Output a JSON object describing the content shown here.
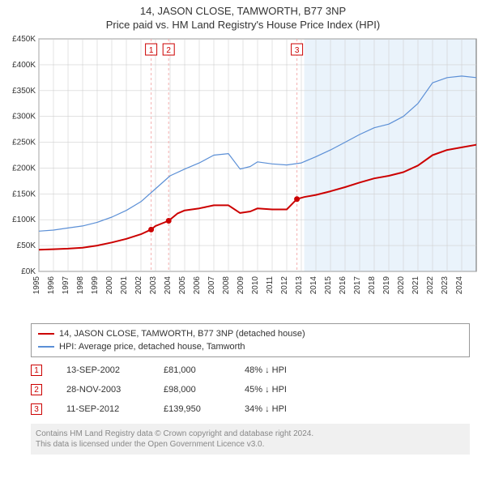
{
  "title": "14, JASON CLOSE, TAMWORTH, B77 3NP",
  "subtitle": "Price paid vs. HM Land Registry's House Price Index (HPI)",
  "chart": {
    "type": "line",
    "plot_bg": "#ffffff",
    "grid_color": "#d0d0d0",
    "axis_color": "#666666",
    "tick_font_size": 10,
    "x": {
      "min": 1995,
      "max": 2025,
      "ticks": [
        1995,
        1996,
        1997,
        1998,
        1999,
        2000,
        2001,
        2002,
        2003,
        2004,
        2005,
        2006,
        2007,
        2008,
        2009,
        2010,
        2011,
        2012,
        2013,
        2014,
        2015,
        2016,
        2017,
        2018,
        2019,
        2020,
        2021,
        2022,
        2023,
        2024
      ]
    },
    "y": {
      "min": 0,
      "max": 450000,
      "ticks": [
        0,
        50000,
        100000,
        150000,
        200000,
        250000,
        300000,
        350000,
        400000,
        450000
      ],
      "tick_labels": [
        "£0K",
        "£50K",
        "£100K",
        "£150K",
        "£200K",
        "£250K",
        "£300K",
        "£350K",
        "£400K",
        "£450K"
      ]
    },
    "shade": {
      "from_year": 2013.2,
      "color": "#eaf3fb"
    },
    "series": [
      {
        "name": "property",
        "label": "14, JASON CLOSE, TAMWORTH, B77 3NP (detached house)",
        "color": "#cc0000",
        "width": 2,
        "points": [
          [
            1995,
            42000
          ],
          [
            1996,
            43000
          ],
          [
            1997,
            44000
          ],
          [
            1998,
            46000
          ],
          [
            1999,
            50000
          ],
          [
            2000,
            56000
          ],
          [
            2001,
            63000
          ],
          [
            2002,
            72000
          ],
          [
            2002.7,
            81000
          ],
          [
            2003,
            88000
          ],
          [
            2003.9,
            98000
          ],
          [
            2004.5,
            112000
          ],
          [
            2005,
            118000
          ],
          [
            2006,
            122000
          ],
          [
            2007,
            128000
          ],
          [
            2008,
            128000
          ],
          [
            2008.8,
            113000
          ],
          [
            2009.5,
            116000
          ],
          [
            2010,
            122000
          ],
          [
            2011,
            120000
          ],
          [
            2012,
            120000
          ],
          [
            2012.7,
            139950
          ],
          [
            2013.2,
            144000
          ],
          [
            2014,
            148000
          ],
          [
            2015,
            155000
          ],
          [
            2016,
            163000
          ],
          [
            2017,
            172000
          ],
          [
            2018,
            180000
          ],
          [
            2019,
            185000
          ],
          [
            2020,
            192000
          ],
          [
            2021,
            205000
          ],
          [
            2022,
            225000
          ],
          [
            2023,
            235000
          ],
          [
            2024,
            240000
          ],
          [
            2025,
            245000
          ]
        ]
      },
      {
        "name": "hpi",
        "label": "HPI: Average price, detached house, Tamworth",
        "color": "#5b8fd6",
        "width": 1.2,
        "points": [
          [
            1995,
            78000
          ],
          [
            1996,
            80000
          ],
          [
            1997,
            84000
          ],
          [
            1998,
            88000
          ],
          [
            1999,
            95000
          ],
          [
            2000,
            105000
          ],
          [
            2001,
            118000
          ],
          [
            2002,
            135000
          ],
          [
            2003,
            160000
          ],
          [
            2004,
            185000
          ],
          [
            2005,
            198000
          ],
          [
            2006,
            210000
          ],
          [
            2007,
            225000
          ],
          [
            2008,
            228000
          ],
          [
            2008.8,
            198000
          ],
          [
            2009.5,
            203000
          ],
          [
            2010,
            212000
          ],
          [
            2011,
            208000
          ],
          [
            2012,
            206000
          ],
          [
            2013,
            210000
          ],
          [
            2014,
            222000
          ],
          [
            2015,
            235000
          ],
          [
            2016,
            250000
          ],
          [
            2017,
            265000
          ],
          [
            2018,
            278000
          ],
          [
            2019,
            285000
          ],
          [
            2020,
            300000
          ],
          [
            2021,
            325000
          ],
          [
            2022,
            365000
          ],
          [
            2023,
            375000
          ],
          [
            2024,
            378000
          ],
          [
            2025,
            375000
          ]
        ]
      }
    ],
    "markers": [
      {
        "n": "1",
        "year": 2002.7,
        "price": 81000,
        "color": "#cc0000"
      },
      {
        "n": "2",
        "year": 2003.9,
        "price": 98000,
        "color": "#cc0000"
      },
      {
        "n": "3",
        "year": 2012.7,
        "price": 139950,
        "color": "#cc0000"
      }
    ],
    "marker_dash_color": "#f4b0b0",
    "marker_box_border": "#cc0000",
    "marker_box_fill": "#ffffff"
  },
  "legend": {
    "items": [
      {
        "color": "#cc0000",
        "label": "14, JASON CLOSE, TAMWORTH, B77 3NP (detached house)"
      },
      {
        "color": "#5b8fd6",
        "label": "HPI: Average price, detached house, Tamworth"
      }
    ]
  },
  "sales": [
    {
      "n": "1",
      "date": "13-SEP-2002",
      "price": "£81,000",
      "delta": "48% ↓ HPI"
    },
    {
      "n": "2",
      "date": "28-NOV-2003",
      "price": "£98,000",
      "delta": "45% ↓ HPI"
    },
    {
      "n": "3",
      "date": "11-SEP-2012",
      "price": "£139,950",
      "delta": "34% ↓ HPI"
    }
  ],
  "footer": {
    "line1": "Contains HM Land Registry data © Crown copyright and database right 2024.",
    "line2": "This data is licensed under the Open Government Licence v3.0."
  }
}
